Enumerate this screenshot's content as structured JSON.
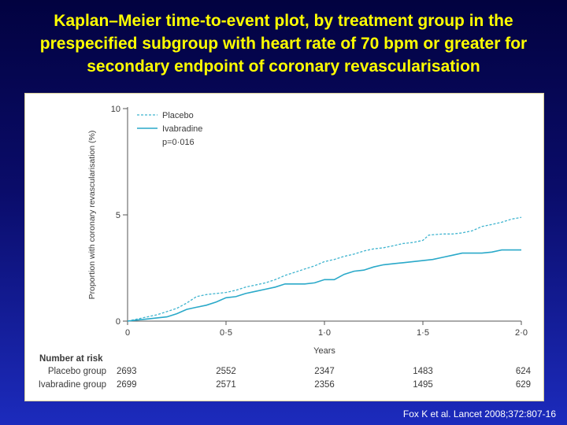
{
  "slide": {
    "title": "Kaplan–Meier time-to-event plot, by treatment group in the prespecified subgroup with heart rate of 70 bpm or greater for secondary endpoint of coronary revascularisation",
    "citation": "Fox K et al. Lancet 2008;372:807-16"
  },
  "colors": {
    "placebo": "#3fb4cf",
    "ivabradine": "#2aa9c9",
    "axis": "#555555",
    "title": "#ffff00"
  },
  "chart_data": {
    "type": "line",
    "title": "",
    "xlabel": "Years",
    "ylabel": "Proportion with coronary revascularisation (%)",
    "xlim": [
      0,
      2.0
    ],
    "ylim": [
      0,
      10
    ],
    "x_ticks": [
      0,
      0.5,
      1.0,
      1.5,
      2.0
    ],
    "x_tick_labels": [
      "0",
      "0·5",
      "1·0",
      "1·5",
      "2·0"
    ],
    "y_ticks": [
      0,
      5,
      10
    ],
    "y_tick_labels": [
      "0",
      "5",
      "10"
    ],
    "grid": false,
    "legend_position": "top-left",
    "annotation": "p=0·016",
    "series": [
      {
        "name": "Placebo",
        "style": "dashed",
        "points": [
          [
            0,
            0
          ],
          [
            0.05,
            0.1
          ],
          [
            0.1,
            0.2
          ],
          [
            0.15,
            0.3
          ],
          [
            0.2,
            0.45
          ],
          [
            0.25,
            0.6
          ],
          [
            0.3,
            0.85
          ],
          [
            0.35,
            1.15
          ],
          [
            0.4,
            1.25
          ],
          [
            0.45,
            1.3
          ],
          [
            0.5,
            1.35
          ],
          [
            0.55,
            1.45
          ],
          [
            0.6,
            1.6
          ],
          [
            0.65,
            1.7
          ],
          [
            0.7,
            1.8
          ],
          [
            0.75,
            1.95
          ],
          [
            0.8,
            2.15
          ],
          [
            0.85,
            2.3
          ],
          [
            0.9,
            2.45
          ],
          [
            0.95,
            2.6
          ],
          [
            1.0,
            2.8
          ],
          [
            1.05,
            2.9
          ],
          [
            1.1,
            3.05
          ],
          [
            1.15,
            3.15
          ],
          [
            1.2,
            3.3
          ],
          [
            1.25,
            3.4
          ],
          [
            1.3,
            3.45
          ],
          [
            1.35,
            3.55
          ],
          [
            1.4,
            3.65
          ],
          [
            1.45,
            3.7
          ],
          [
            1.5,
            3.8
          ],
          [
            1.53,
            4.05
          ],
          [
            1.6,
            4.1
          ],
          [
            1.65,
            4.1
          ],
          [
            1.7,
            4.15
          ],
          [
            1.75,
            4.25
          ],
          [
            1.8,
            4.45
          ],
          [
            1.85,
            4.55
          ],
          [
            1.9,
            4.65
          ],
          [
            1.95,
            4.8
          ],
          [
            2.0,
            4.88
          ]
        ]
      },
      {
        "name": "Ivabradine",
        "style": "solid",
        "points": [
          [
            0,
            0
          ],
          [
            0.05,
            0.05
          ],
          [
            0.1,
            0.1
          ],
          [
            0.15,
            0.15
          ],
          [
            0.2,
            0.2
          ],
          [
            0.25,
            0.35
          ],
          [
            0.3,
            0.55
          ],
          [
            0.35,
            0.65
          ],
          [
            0.4,
            0.75
          ],
          [
            0.45,
            0.9
          ],
          [
            0.5,
            1.1
          ],
          [
            0.55,
            1.15
          ],
          [
            0.6,
            1.3
          ],
          [
            0.65,
            1.4
          ],
          [
            0.7,
            1.5
          ],
          [
            0.75,
            1.6
          ],
          [
            0.8,
            1.75
          ],
          [
            0.85,
            1.75
          ],
          [
            0.9,
            1.75
          ],
          [
            0.95,
            1.8
          ],
          [
            1.0,
            1.95
          ],
          [
            1.05,
            1.95
          ],
          [
            1.1,
            2.2
          ],
          [
            1.15,
            2.35
          ],
          [
            1.2,
            2.4
          ],
          [
            1.25,
            2.55
          ],
          [
            1.3,
            2.65
          ],
          [
            1.35,
            2.7
          ],
          [
            1.4,
            2.75
          ],
          [
            1.45,
            2.8
          ],
          [
            1.5,
            2.85
          ],
          [
            1.55,
            2.9
          ],
          [
            1.6,
            3.0
          ],
          [
            1.65,
            3.1
          ],
          [
            1.7,
            3.2
          ],
          [
            1.75,
            3.2
          ],
          [
            1.8,
            3.2
          ],
          [
            1.85,
            3.25
          ],
          [
            1.9,
            3.35
          ],
          [
            1.95,
            3.35
          ],
          [
            2.0,
            3.35
          ]
        ]
      }
    ],
    "number_at_risk": {
      "heading": "Number at risk",
      "rows": [
        {
          "label": "Placebo group",
          "values": [
            "2693",
            "2552",
            "2347",
            "1483",
            "624"
          ]
        },
        {
          "label": "Ivabradine group",
          "values": [
            "2699",
            "2571",
            "2356",
            "1495",
            "629"
          ]
        }
      ]
    }
  }
}
